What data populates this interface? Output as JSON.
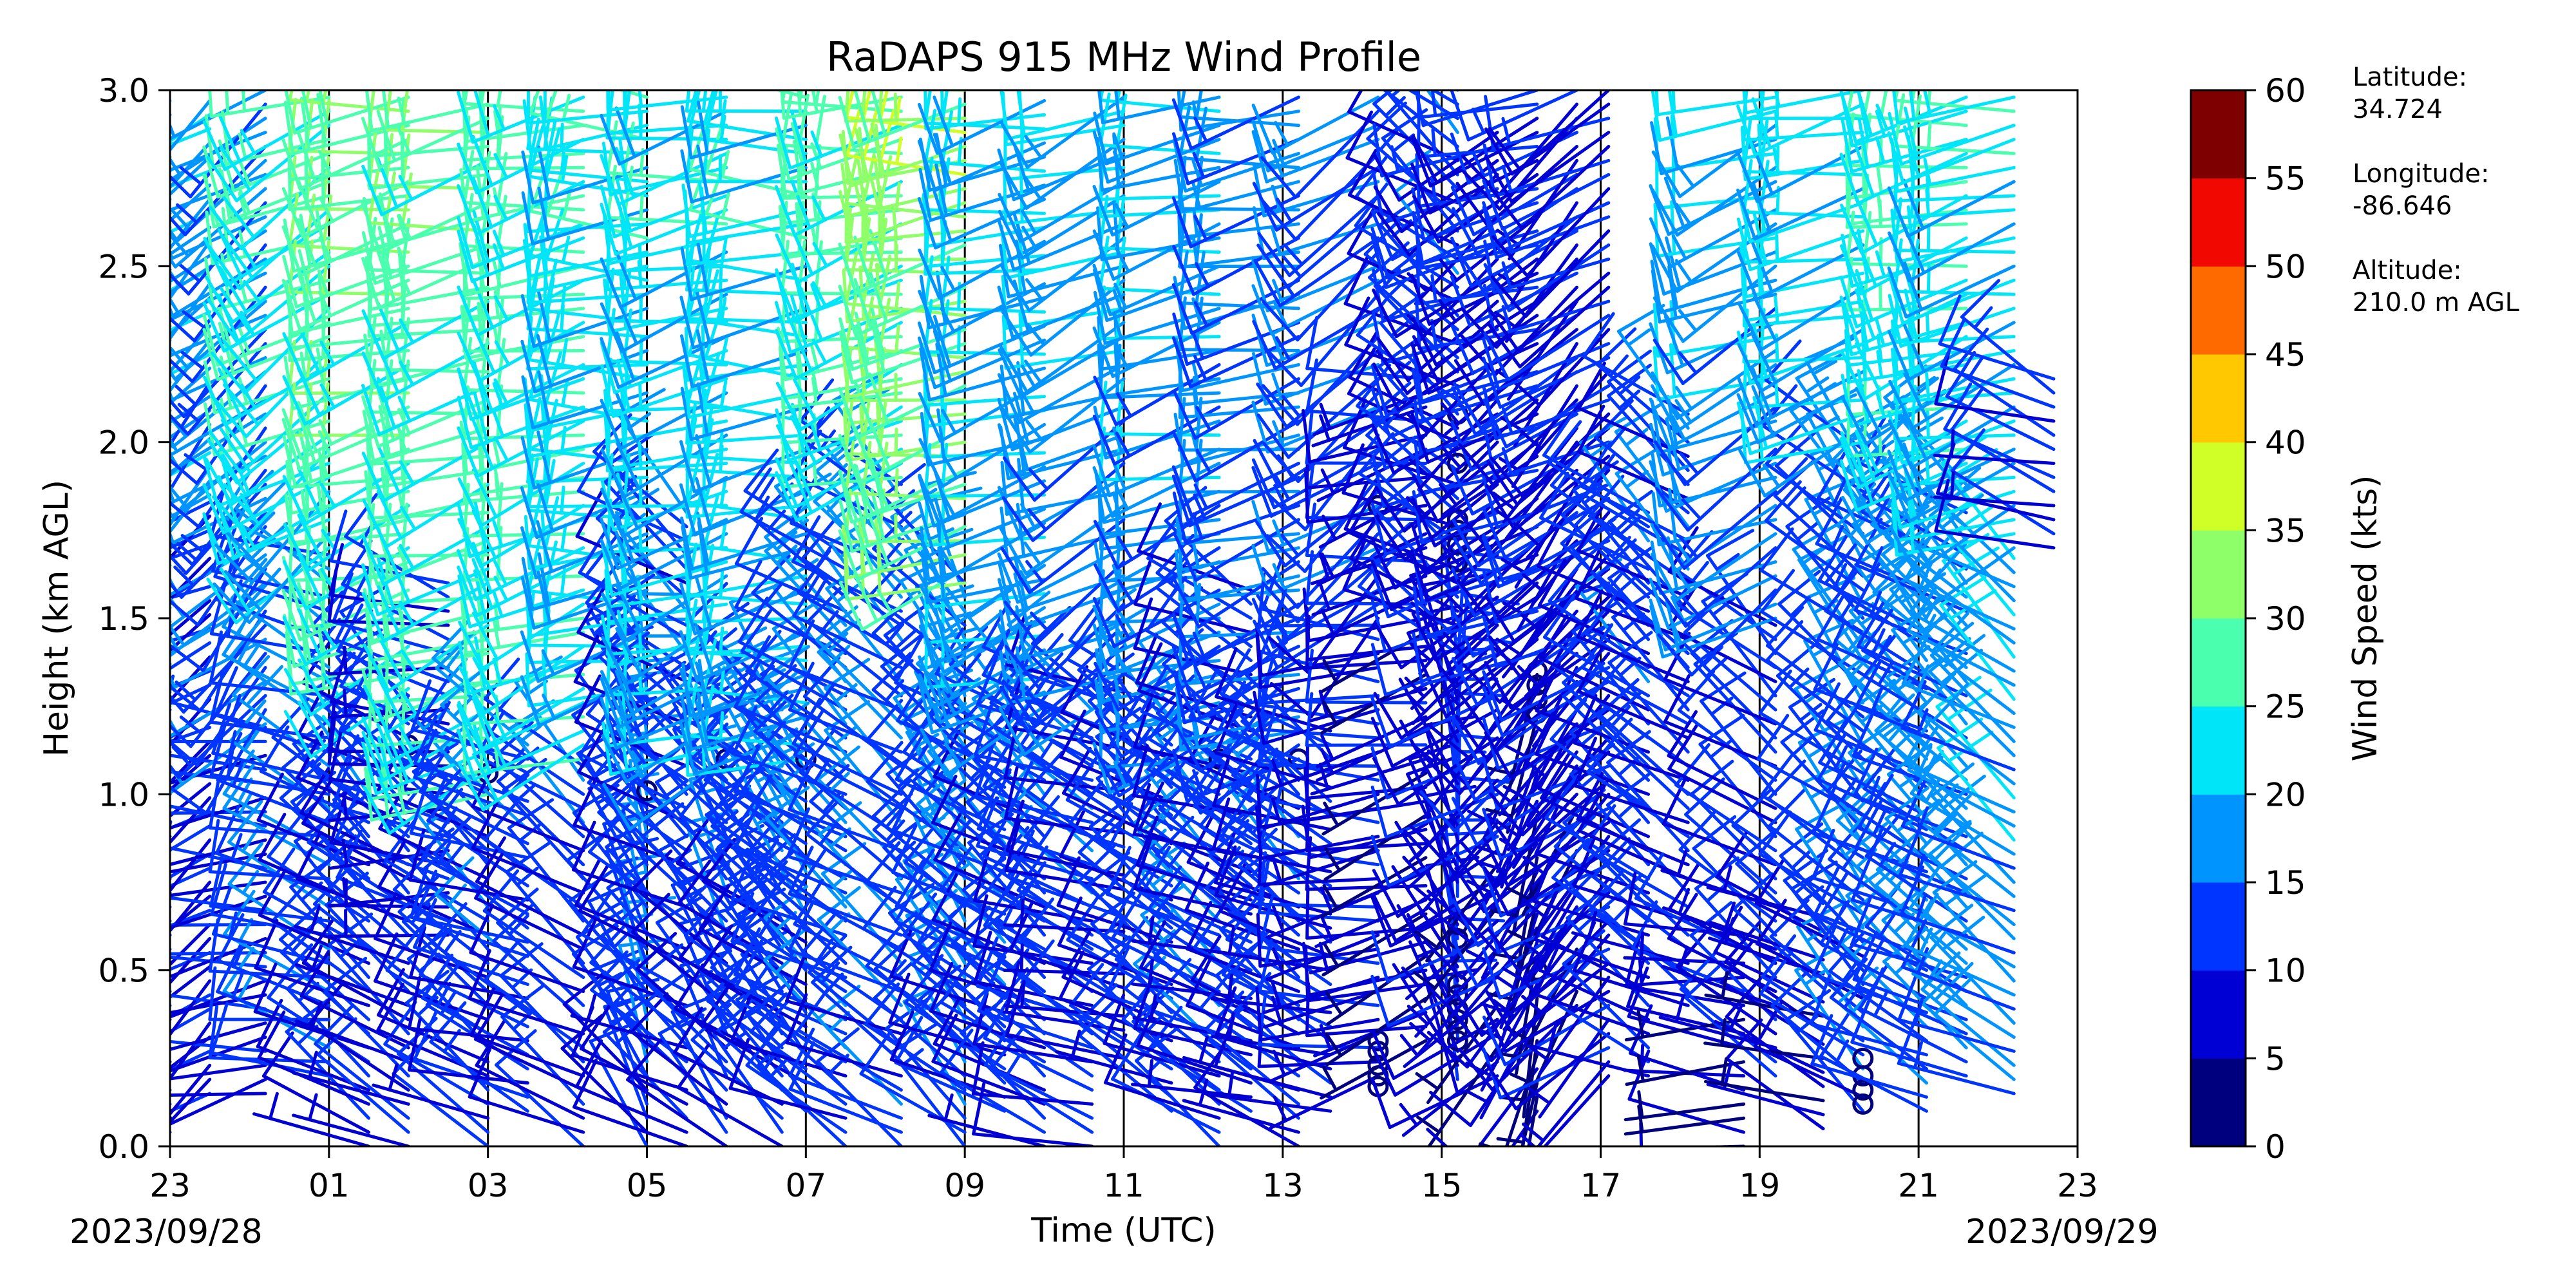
{
  "chart_data": {
    "type": "wind-barb",
    "title": "RaDAPS 915 MHz Wind Profile",
    "xlabel": "Time (UTC)",
    "ylabel": "Height (km AGL)",
    "x_tick_labels": [
      "23",
      "01",
      "03",
      "05",
      "07",
      "09",
      "11",
      "13",
      "15",
      "17",
      "19",
      "21",
      "23"
    ],
    "start_date": "2023/09/28",
    "end_date": "2023/09/29",
    "ylim": [
      0.0,
      3.0
    ],
    "y_ticks": [
      0.0,
      0.5,
      1.0,
      1.5,
      2.0,
      2.5,
      3.0
    ],
    "y_tick_labels": [
      "0.0",
      "0.5",
      "1.0",
      "1.5",
      "2.0",
      "2.5",
      "3.0"
    ],
    "colorbar": {
      "label": "Wind Speed (kts)",
      "ticks": [
        "0",
        "5",
        "10",
        "15",
        "20",
        "25",
        "30",
        "35",
        "40",
        "45",
        "50",
        "55",
        "60"
      ],
      "colors": [
        "#00007f",
        "#0000d4",
        "#0034ff",
        "#0094ff",
        "#00e5f8",
        "#4affad",
        "#8eff68",
        "#cfff27",
        "#ffc800",
        "#ff6a00",
        "#f10800",
        "#7f0000"
      ]
    },
    "station": {
      "lat_label": "Latitude:",
      "lat": "34.724",
      "lon_label": "Longitude:",
      "lon": "-86.646",
      "alt_label": "Altitude:",
      "alt": "210.0 m AGL"
    },
    "profiles": [
      {
        "t": 23.0,
        "low": [
          10,
          240,
          0.0,
          1.25
        ],
        "mid": [
          18,
          235,
          1.25,
          3.0
        ]
      },
      {
        "t": 23.5,
        "low": [
          8,
          230,
          0.15,
          1.85
        ],
        "mid": [
          17,
          225,
          1.85,
          3.0
        ]
      },
      {
        "t": 24.2,
        "low": [
          8,
          260,
          0.15,
          1.2
        ],
        "mid": [
          14,
          225,
          1.2,
          3.0
        ]
      },
      {
        "t": 25.0,
        "low": [
          13,
          285,
          0.2,
          1.7
        ],
        "mid": [
          22,
          235,
          1.7,
          3.0
        ]
      },
      {
        "t": 25.5,
        "low": [
          10,
          300,
          0.0,
          1.0
        ]
      },
      {
        "t": 26.0,
        "low": [
          9,
          300,
          0.0,
          1.3
        ],
        "mid": [
          26,
          250,
          1.3,
          3.0
        ],
        "calm": [
          1.14
        ]
      },
      {
        "t": 26.5,
        "low": [
          8,
          275,
          0.6,
          1.6
        ]
      },
      {
        "t": 27.0,
        "low": [
          10,
          300,
          0.0,
          1.0
        ],
        "mid": [
          25,
          250,
          1.0,
          3.0
        ],
        "calm": [
          1.06
        ]
      },
      {
        "t": 27.5,
        "low": [
          11,
          290,
          0.1,
          1.2
        ]
      },
      {
        "t": 28.2,
        "low": [
          10,
          300,
          0.0,
          1.1
        ],
        "mid": [
          24,
          250,
          1.1,
          3.0
        ]
      },
      {
        "t": 29.0,
        "low": [
          12,
          330,
          0.0,
          1.3
        ],
        "mid": [
          20,
          260,
          1.3,
          3.0
        ],
        "calm": [
          1.01
        ]
      },
      {
        "t": 29.5,
        "low": [
          10,
          300,
          0.0,
          1.8
        ]
      },
      {
        "t": 30.0,
        "low": [
          11,
          320,
          0.0,
          1.1
        ],
        "mid": [
          20,
          250,
          1.1,
          3.0
        ],
        "calm": [
          1.1
        ]
      },
      {
        "t": 30.7,
        "low": [
          11,
          310,
          0.0,
          1.3
        ]
      },
      {
        "t": 31.0,
        "low": [
          11,
          310,
          0.1,
          1.1
        ],
        "mid": [
          20,
          260,
          1.1,
          3.0
        ],
        "calm": [
          1.1
        ]
      },
      {
        "t": 31.5,
        "low": [
          12,
          300,
          0.0,
          1.7
        ]
      },
      {
        "t": 32.2,
        "low": [
          12,
          300,
          0.0,
          1.9
        ],
        "mid": [
          24,
          250,
          1.9,
          3.0
        ]
      },
      {
        "t": 33.0,
        "low": [
          13,
          315,
          0.0,
          1.6
        ],
        "mid": [
          30,
          255,
          1.6,
          3.0
        ]
      },
      {
        "t": 33.5,
        "low": [
          12,
          300,
          0.1,
          1.2
        ]
      },
      {
        "t": 34.0,
        "low": [
          10,
          300,
          0.0,
          1.25
        ],
        "mid": [
          18,
          250,
          1.25,
          3.0
        ]
      },
      {
        "t": 34.6,
        "low": [
          11,
          290,
          0.0,
          1.3
        ]
      },
      {
        "t": 35.0,
        "low": [
          9,
          285,
          0.25,
          1.3
        ],
        "mid": [
          16,
          240,
          1.3,
          3.0
        ]
      },
      {
        "t": 35.6,
        "low": [
          10,
          300,
          0.1,
          1.3
        ]
      },
      {
        "t": 36.2,
        "low": [
          12,
          300,
          0.0,
          1.1
        ],
        "mid": [
          16,
          250,
          1.1,
          3.0
        ],
        "calm": [
          1.1
        ]
      },
      {
        "t": 36.6,
        "low": [
          9,
          290,
          0.1,
          1.6
        ]
      },
      {
        "t": 37.2,
        "low": [
          10,
          300,
          0.0,
          1.1
        ],
        "mid": [
          14,
          250,
          1.1,
          3.0
        ],
        "calm": [
          1.1
        ]
      },
      {
        "t": 37.6,
        "low": [
          9,
          290,
          0.1,
          1.2
        ]
      },
      {
        "t": 38.2,
        "low": [
          8,
          260,
          0.2,
          1.5
        ],
        "mid": [
          12,
          230,
          1.5,
          3.0
        ],
        "calm": [
          0.17,
          0.2,
          0.23,
          0.27,
          0.3,
          1.82
        ]
      },
      {
        "t": 38.8,
        "low": [
          6,
          250,
          0.3,
          2.2
        ]
      },
      {
        "t": 39.2,
        "low": [
          8,
          340,
          0.15,
          1.4
        ],
        "mid": [
          10,
          300,
          1.4,
          3.0
        ],
        "calm": [
          0.3,
          0.33,
          0.36,
          0.39,
          0.43,
          0.46,
          0.59,
          0.63,
          1.66,
          1.71,
          1.75,
          1.78,
          1.94,
          2.08
        ]
      },
      {
        "t": 39.7,
        "low": [
          7,
          230,
          0.2,
          2.9
        ]
      },
      {
        "t": 40.2,
        "low": [
          5,
          200,
          0.1,
          1.4
        ],
        "mid": [
          8,
          240,
          1.4,
          3.0
        ],
        "calm": [
          0.5,
          1.23,
          1.27,
          1.31,
          1.35
        ]
      },
      {
        "t": 40.7,
        "low": [
          7,
          220,
          0.4,
          3.0
        ]
      },
      {
        "t": 41.1,
        "low": [
          8,
          230,
          0.2,
          3.0
        ]
      },
      {
        "t": 41.6,
        "low": [
          10,
          300,
          0.2,
          1.8
        ]
      },
      {
        "t": 42.1,
        "low": [
          10,
          300,
          0.4,
          2.1
        ]
      },
      {
        "t": 42.8,
        "low": [
          6,
          270,
          0.0,
          0.6
        ]
      },
      {
        "t": 43.2,
        "low": [
          9,
          300,
          0.2,
          1.5
        ],
        "mid": [
          16,
          240,
          1.5,
          3.0
        ]
      },
      {
        "t": 43.8,
        "low": [
          6,
          290,
          0.05,
          0.7
        ]
      },
      {
        "t": 44.3,
        "low": [
          12,
          310,
          0.1,
          2.0
        ],
        "mid": [
          20,
          250,
          2.0,
          3.0
        ],
        "calm": [
          0.12,
          0.16,
          0.2,
          0.25
        ]
      },
      {
        "t": 45.1,
        "low": [
          13,
          300,
          0.1,
          1.8
        ]
      },
      {
        "t": 45.6,
        "low": [
          14,
          300,
          0.2,
          1.9
        ],
        "mid": [
          22,
          250,
          1.9,
          3.0
        ]
      },
      {
        "t": 46.2,
        "low": [
          16,
          300,
          0.15,
          1.7
        ],
        "mid": [
          20,
          250,
          1.7,
          3.0
        ]
      },
      {
        "t": 46.7,
        "low": [
          9,
          285,
          1.7,
          2.2
        ]
      }
    ]
  }
}
